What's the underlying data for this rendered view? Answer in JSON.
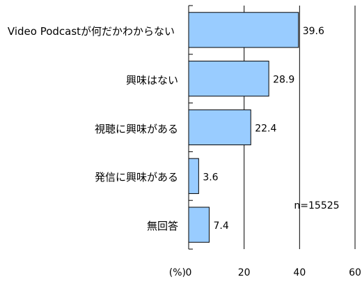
{
  "chart_data": {
    "type": "bar",
    "orientation": "horizontal",
    "categories": [
      "Video Podcastが何だかわからない",
      "興味はない",
      "視聴に興味がある",
      "発信に興味がある",
      "無回答"
    ],
    "values": [
      39.6,
      28.9,
      22.4,
      3.6,
      7.4
    ],
    "color": "#99ccff",
    "xlim": [
      0,
      60
    ],
    "xticks": [
      0,
      20,
      40,
      60
    ],
    "x_label": "(%)",
    "annotation": "n=15525",
    "grid": true
  }
}
